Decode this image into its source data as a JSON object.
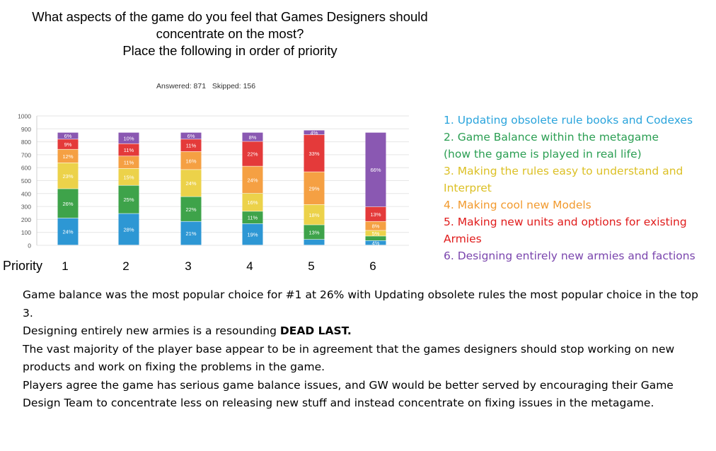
{
  "title_lines": [
    "What aspects of the game do you feel that Games Designers should",
    "concentrate on the most?",
    "Place the following in order of priority"
  ],
  "answered": "Answered: 871",
  "skipped": "Skipped: 156",
  "x_axis_title": "Priority",
  "colors": {
    "updating": "#2d97d4",
    "balance": "#3ea34a",
    "easy": "#ecd24a",
    "models": "#f5a043",
    "units": "#e43a3a",
    "armies": "#8a58b2"
  },
  "legend": [
    {
      "lines": [
        "1. Updating obsolete rule books and Codexes"
      ],
      "color": "#2aa4dc"
    },
    {
      "lines": [
        "2. Game Balance within the metagame",
        "(how the game is played in real life)"
      ],
      "color": "#2a9e52"
    },
    {
      "lines": [
        "3. Making the rules easy to understand and",
        "Interpret"
      ],
      "color": "#dcc025"
    },
    {
      "lines": [
        "4. Making cool new Models"
      ],
      "color": "#f29a2e"
    },
    {
      "lines": [
        "5. Making new units and options for existing",
        "Armies"
      ],
      "color": "#e01b1b"
    },
    {
      "lines": [
        "6. Designing entirely new armies and factions"
      ],
      "color": "#7a45ad"
    }
  ],
  "notes": {
    "p1": "Game balance was the most popular choice for #1 at 26% with Updating obsolete rules the most popular choice in the top 3.",
    "p2_prefix": "Designing entirely new armies is a resounding ",
    "p2_bold": "DEAD LAST.",
    "p3": "The vast majority of the player base appear to be in agreement that the games designers should stop working on new products and work on fixing the problems in the game.",
    "p4": "Players agree the game has serious game balance issues, and GW would be better served by encouraging their Game Design Team to concentrate less on releasing new stuff and instead concentrate on fixing issues in the metagame."
  },
  "chart_data": {
    "type": "bar",
    "stacked": true,
    "categories": [
      "1",
      "2",
      "3",
      "4",
      "5",
      "6"
    ],
    "ylim": [
      0,
      1000
    ],
    "yticks": [
      0,
      100,
      200,
      300,
      400,
      500,
      600,
      700,
      800,
      900,
      1000
    ],
    "grid": true,
    "total": 871,
    "series": [
      {
        "key": "updating",
        "values": [
          24,
          28,
          21,
          19,
          5,
          4
        ],
        "labels": [
          "24%",
          "28%",
          "21%",
          "19%",
          "",
          "4%"
        ]
      },
      {
        "key": "balance",
        "values": [
          26,
          25,
          22,
          11,
          13,
          4
        ],
        "labels": [
          "26%",
          "25%",
          "22%",
          "11%",
          "13%",
          ""
        ]
      },
      {
        "key": "easy",
        "values": [
          23,
          15,
          24,
          16,
          18,
          5
        ],
        "labels": [
          "23%",
          "15%",
          "24%",
          "16%",
          "18%",
          "5%"
        ]
      },
      {
        "key": "models",
        "values": [
          12,
          11,
          16,
          24,
          29,
          8
        ],
        "labels": [
          "12%",
          "11%",
          "16%",
          "24%",
          "29%",
          "8%"
        ]
      },
      {
        "key": "units",
        "values": [
          9,
          11,
          11,
          22,
          33,
          13
        ],
        "labels": [
          "9%",
          "11%",
          "11%",
          "22%",
          "33%",
          "13%"
        ]
      },
      {
        "key": "armies",
        "values": [
          6,
          10,
          6,
          8,
          4,
          66
        ],
        "labels": [
          "6%",
          "10%",
          "6%",
          "8%",
          "4%",
          "66%"
        ]
      }
    ]
  }
}
